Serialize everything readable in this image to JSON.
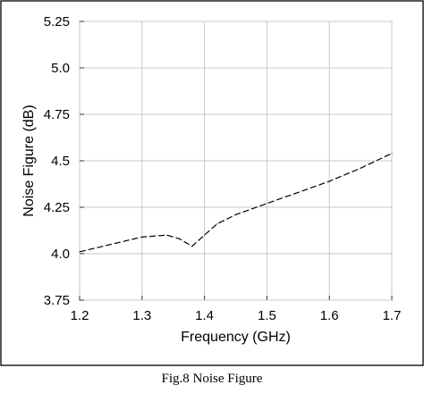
{
  "caption": "Fig.8 Noise Figure",
  "chart_data": {
    "type": "line",
    "title": "",
    "xlabel": "Frequency (GHz)",
    "ylabel": "Noise Figure (dB)",
    "xlim": [
      1.2,
      1.7
    ],
    "ylim": [
      3.75,
      5.25
    ],
    "xticks": [
      1.2,
      1.3,
      1.4,
      1.5,
      1.6,
      1.7
    ],
    "xtick_labels": [
      "1.2",
      "1.3",
      "1.4",
      "1.5",
      "1.6",
      "1.7"
    ],
    "yticks": [
      3.75,
      4.0,
      4.25,
      4.5,
      4.75,
      5.0,
      5.25
    ],
    "ytick_labels": [
      "3.75",
      "4.0",
      "4.25",
      "4.5",
      "4.75",
      "5.0",
      "5.25"
    ],
    "grid": true,
    "line_style": "dashed",
    "line_color": "#000000",
    "series": [
      {
        "x": [
          1.2,
          1.25,
          1.3,
          1.34,
          1.36,
          1.38,
          1.4,
          1.42,
          1.45,
          1.5,
          1.55,
          1.6,
          1.65,
          1.7
        ],
        "values": [
          4.01,
          4.05,
          4.09,
          4.1,
          4.08,
          4.04,
          4.1,
          4.16,
          4.21,
          4.27,
          4.33,
          4.39,
          4.46,
          4.54
        ]
      }
    ]
  }
}
